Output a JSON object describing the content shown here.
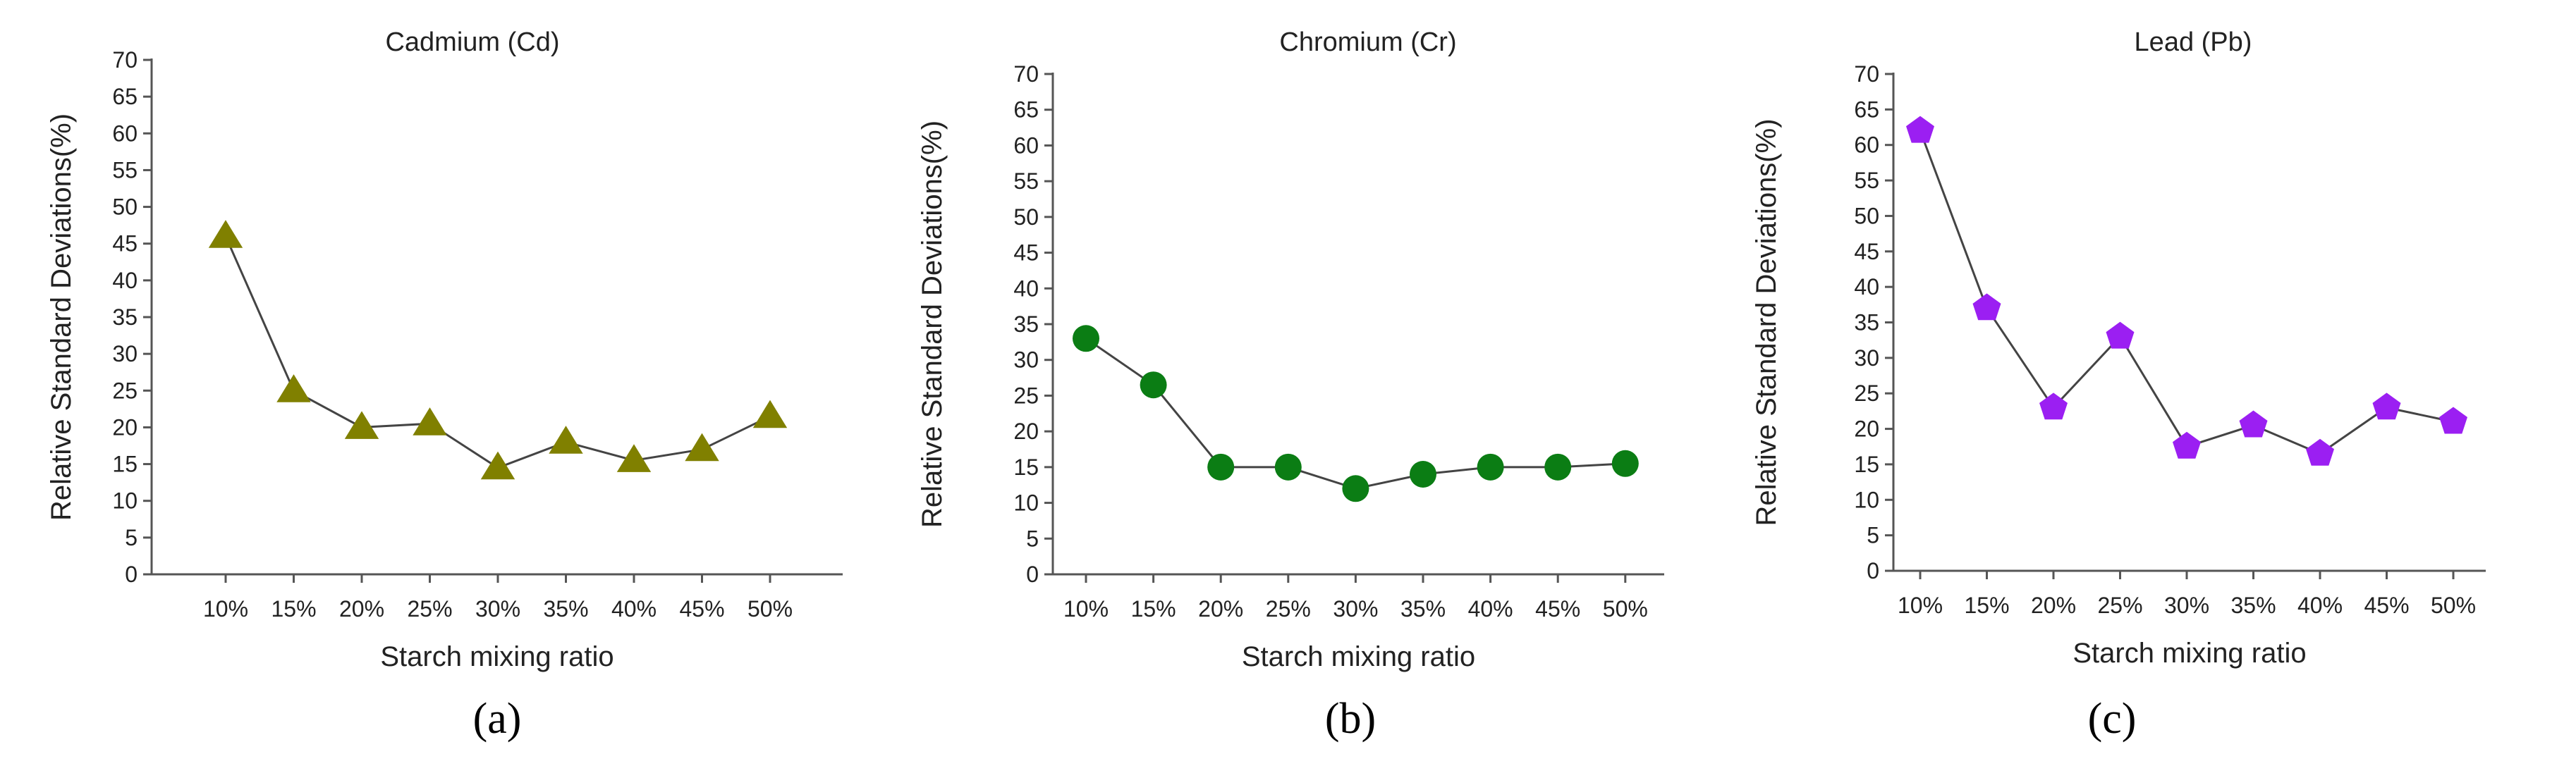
{
  "chart_data": [
    {
      "type": "line",
      "panel_label": "(a)",
      "title": "Cadmium (Cd)",
      "xlabel": "Starch mixing ratio",
      "ylabel": "Relative Standard Deviations(%)",
      "categories": [
        "10%",
        "15%",
        "20%",
        "25%",
        "30%",
        "35%",
        "40%",
        "45%",
        "50%"
      ],
      "yticks": [
        "0",
        "5",
        "10",
        "15",
        "20",
        "25",
        "30",
        "35",
        "40",
        "45",
        "50",
        "55",
        "60",
        "65",
        "70"
      ],
      "ylim": [
        0,
        70
      ],
      "marker": "triangle",
      "marker_color": "#808000",
      "series": [
        {
          "values": [
            46,
            25,
            20,
            20.5,
            14.5,
            18,
            15.5,
            17,
            21.5
          ]
        }
      ]
    },
    {
      "type": "line",
      "panel_label": "(b)",
      "title": "Chromium (Cr)",
      "xlabel": "Starch mixing ratio",
      "ylabel": "Relative Standard Deviations(%)",
      "categories": [
        "10%",
        "15%",
        "20%",
        "25%",
        "30%",
        "35%",
        "40%",
        "45%",
        "50%"
      ],
      "yticks": [
        "0",
        "5",
        "10",
        "15",
        "20",
        "25",
        "30",
        "35",
        "40",
        "45",
        "50",
        "55",
        "60",
        "65",
        "70"
      ],
      "ylim": [
        0,
        70
      ],
      "marker": "circle",
      "marker_color": "#0b7d14",
      "series": [
        {
          "values": [
            33,
            26.5,
            15,
            15,
            12,
            14,
            15,
            15,
            15.5
          ]
        }
      ]
    },
    {
      "type": "line",
      "panel_label": "(c)",
      "title": "Lead (Pb)",
      "xlabel": "Starch mixing ratio",
      "ylabel": "Relative Standard Deviations(%)",
      "categories": [
        "10%",
        "15%",
        "20%",
        "25%",
        "30%",
        "35%",
        "40%",
        "45%",
        "50%"
      ],
      "yticks": [
        "0",
        "5",
        "10",
        "15",
        "20",
        "25",
        "30",
        "35",
        "40",
        "45",
        "50",
        "55",
        "60",
        "65",
        "70"
      ],
      "ylim": [
        0,
        70
      ],
      "marker": "pentagon",
      "marker_color": "#9b1ff2",
      "series": [
        {
          "values": [
            62,
            37,
            23,
            33,
            17.5,
            20.5,
            16.5,
            23,
            21
          ]
        }
      ]
    }
  ]
}
